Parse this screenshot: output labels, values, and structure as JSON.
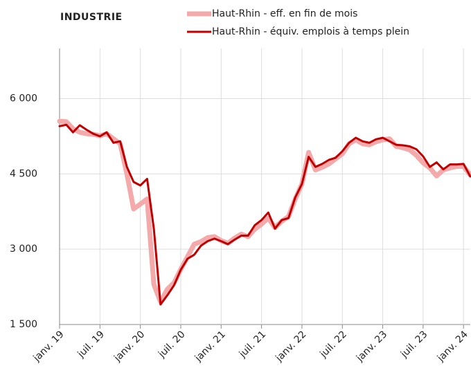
{
  "chart_data": {
    "type": "line",
    "title": "INDUSTRIE",
    "categories": [
      "janv. 19",
      null,
      null,
      null,
      null,
      null,
      "juil. 19",
      null,
      null,
      null,
      null,
      null,
      "janv. 20",
      null,
      null,
      null,
      null,
      null,
      "juil. 20",
      null,
      null,
      null,
      null,
      null,
      "janv. 21",
      null,
      null,
      null,
      null,
      null,
      "juil. 21",
      null,
      null,
      null,
      null,
      null,
      "janv. 22",
      null,
      null,
      null,
      null,
      null,
      "juil. 22",
      null,
      null,
      null,
      null,
      null,
      "janv. 23",
      null,
      null,
      null,
      null,
      null,
      "juil. 23",
      null,
      null,
      null,
      null,
      null,
      "janv. 24",
      null
    ],
    "series": [
      {
        "name": "Haut-Rhin - eff. en fin de mois",
        "color": "#f4a9aa",
        "values": [
          5550,
          5540,
          5400,
          5330,
          5300,
          5290,
          5260,
          5300,
          5200,
          5100,
          4500,
          3800,
          3900,
          4000,
          2300,
          1950,
          2200,
          2330,
          2600,
          2850,
          3100,
          3150,
          3230,
          3250,
          3170,
          3120,
          3220,
          3300,
          3250,
          3400,
          3500,
          3620,
          3430,
          3560,
          3650,
          4000,
          4300,
          4930,
          4580,
          4630,
          4700,
          4800,
          4900,
          5100,
          5180,
          5100,
          5080,
          5140,
          5180,
          5200,
          5050,
          5020,
          4980,
          4870,
          4720,
          4620,
          4460,
          4580,
          4620,
          4650,
          4650,
          4480
        ]
      },
      {
        "name": "Haut-Rhin - équiv. emplois à temps plein",
        "color": "#c00000",
        "values": [
          5450,
          5480,
          5330,
          5470,
          5380,
          5300,
          5250,
          5330,
          5120,
          5150,
          4640,
          4340,
          4270,
          4400,
          3410,
          1900,
          2080,
          2280,
          2590,
          2810,
          2890,
          3070,
          3160,
          3210,
          3160,
          3100,
          3190,
          3270,
          3270,
          3480,
          3580,
          3730,
          3410,
          3580,
          3620,
          4030,
          4300,
          4840,
          4640,
          4700,
          4780,
          4820,
          4950,
          5120,
          5220,
          5150,
          5120,
          5190,
          5220,
          5150,
          5080,
          5070,
          5050,
          4990,
          4850,
          4640,
          4730,
          4590,
          4690,
          4690,
          4700,
          4450
        ]
      }
    ],
    "ylim": [
      1500,
      7000
    ],
    "yticks": [
      {
        "value": 1500,
        "label": "1 500"
      },
      {
        "value": 3000,
        "label": "3 000"
      },
      {
        "value": 4500,
        "label": "4 500"
      },
      {
        "value": 6000,
        "label": "6 000"
      }
    ],
    "grid": true
  }
}
